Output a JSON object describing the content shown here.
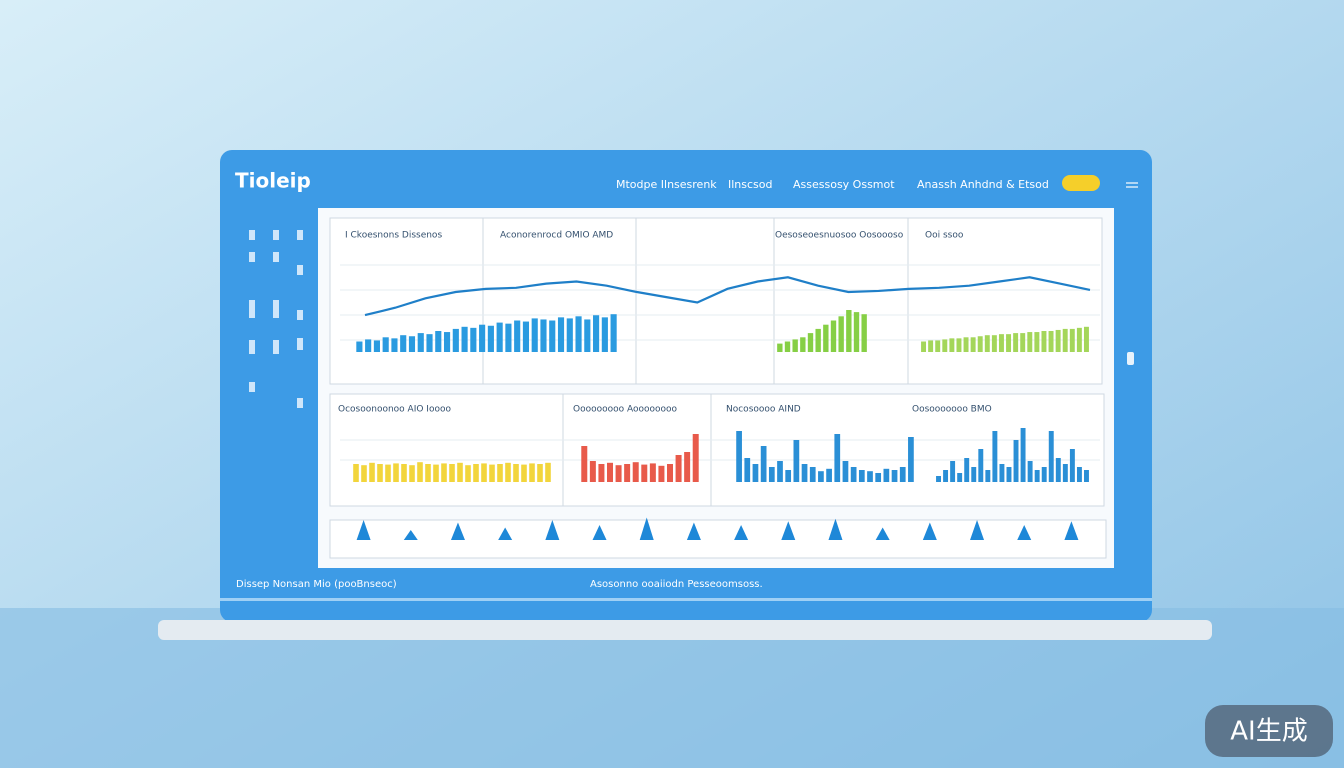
{
  "header": {
    "logo": "Tioleip",
    "nav": [
      "Mtodpe Ilnsesrenk",
      "Ilnscsod",
      "Assessosy Ossmot",
      "Anassh Anhdnd & Etsod"
    ]
  },
  "panels": {
    "top": [
      "I Ckoesnons Dissenos",
      "Aconorenrocd OMIO AMD",
      "Oesoseoesnuosoo Oosoooso",
      "Ooi ssoo"
    ],
    "bottom": [
      "Ocosoonoonoo AIO Ioooo",
      "Ooooooooo Aoooooooo",
      "Nocosoooo AIND",
      "Oosooooooo BMO"
    ]
  },
  "footer": {
    "left": "Dissep Nonsan Mio (pooBnseoc)",
    "center": "Asosonno ooaiiodn Pesseoomsoss."
  },
  "watermark": "AI生成",
  "chart_data": [
    {
      "type": "line",
      "color": "#1f7fc8",
      "ylim": [
        0,
        100
      ],
      "values": [
        38,
        45,
        54,
        60,
        63,
        64,
        68,
        70,
        66,
        60,
        55,
        50,
        63,
        70,
        74,
        66,
        60,
        61,
        63,
        64,
        66,
        70,
        74,
        68,
        62
      ]
    },
    {
      "type": "bar",
      "color": "#2a9be0",
      "ylim": [
        0,
        100
      ],
      "values": [
        10,
        12,
        11,
        14,
        13,
        16,
        15,
        18,
        17,
        20,
        19,
        22,
        24,
        23,
        26,
        25,
        28,
        27,
        30,
        29,
        32,
        31,
        30,
        33,
        32,
        34,
        31,
        35,
        33,
        36
      ]
    },
    {
      "type": "bar",
      "color": "#86cf45",
      "ylim": [
        0,
        100
      ],
      "values": [
        8,
        10,
        12,
        14,
        18,
        22,
        26,
        30,
        34,
        40,
        38,
        36
      ]
    },
    {
      "type": "bar",
      "color": "#a4d65a",
      "ylim": [
        0,
        100
      ],
      "values": [
        10,
        11,
        11,
        12,
        13,
        13,
        14,
        14,
        15,
        16,
        16,
        17,
        17,
        18,
        18,
        19,
        19,
        20,
        20,
        21,
        22,
        22,
        23,
        24
      ]
    },
    {
      "type": "bar",
      "color": "#f2d53c",
      "ylim": [
        0,
        100
      ],
      "values": [
        30,
        28,
        32,
        30,
        29,
        31,
        30,
        28,
        33,
        30,
        29,
        31,
        30,
        32,
        28,
        30,
        31,
        29,
        30,
        32,
        30,
        29,
        31,
        30,
        32
      ]
    },
    {
      "type": "bar",
      "color": "#e85a4a",
      "ylim": [
        0,
        100
      ],
      "values": [
        60,
        35,
        30,
        32,
        28,
        30,
        33,
        29,
        31,
        27,
        30,
        45,
        50,
        80
      ]
    },
    {
      "type": "bar",
      "color": "#2a8fd6",
      "ylim": [
        0,
        100
      ],
      "values": [
        85,
        40,
        30,
        60,
        25,
        35,
        20,
        70,
        30,
        25,
        18,
        22,
        80,
        35,
        25,
        20,
        18,
        15,
        22,
        20,
        25,
        75
      ]
    },
    {
      "type": "bar",
      "color": "#2a8fd6",
      "ylim": [
        0,
        100
      ],
      "values": [
        10,
        20,
        35,
        15,
        40,
        25,
        55,
        20,
        85,
        30,
        25,
        70,
        90,
        35,
        20,
        25,
        85,
        40,
        30,
        55,
        25,
        20
      ]
    },
    {
      "type": "peak",
      "color": "#1e88d8",
      "ylim": [
        0,
        100
      ],
      "values": [
        80,
        40,
        70,
        50,
        80,
        60,
        90,
        70,
        60,
        75,
        85,
        50,
        70,
        80,
        60,
        75
      ]
    }
  ]
}
